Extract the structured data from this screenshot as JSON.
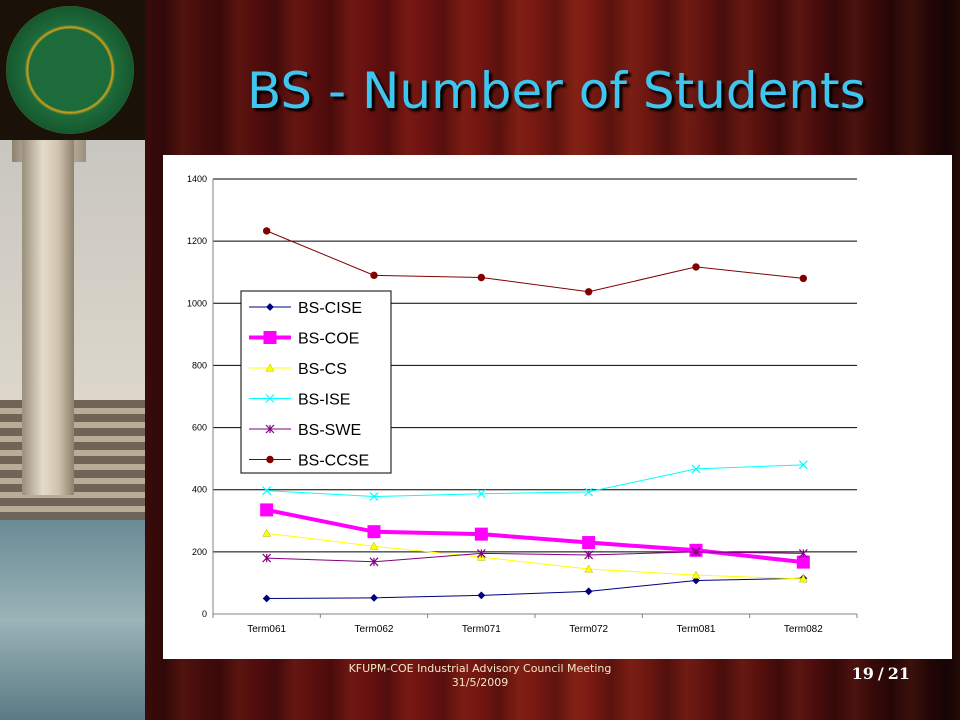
{
  "slide": {
    "title": "BS - Number of Students",
    "footer_line1": "KFUPM-COE Industrial Advisory Council Meeting",
    "footer_line2": "31/5/2009",
    "page_current": "19",
    "page_total": "21"
  },
  "colors": {
    "title": "#3fc6ef",
    "BS-CISE": "#000080",
    "BS-COE": "#ff00ff",
    "BS-CS": "#ffff00",
    "BS-ISE": "#00ffff",
    "BS-SWE": "#800080",
    "BS-CCSE": "#800000"
  },
  "chart_data": {
    "type": "line",
    "title": "",
    "xlabel": "",
    "ylabel": "",
    "categories": [
      "Term061",
      "Term062",
      "Term071",
      "Term072",
      "Term081",
      "Term082"
    ],
    "ylim": [
      0,
      1400
    ],
    "yticks": [
      "0",
      "200",
      "400",
      "600",
      "800",
      "1000",
      "1200",
      "1400"
    ],
    "grid": true,
    "legend_position": "left-middle",
    "series": [
      {
        "name": "BS-CISE",
        "marker": "diamond",
        "values": [
          50,
          52,
          60,
          73,
          108,
          115
        ]
      },
      {
        "name": "BS-COE",
        "marker": "square",
        "values": [
          335,
          265,
          257,
          230,
          205,
          167
        ]
      },
      {
        "name": "BS-CS",
        "marker": "triangle",
        "values": [
          260,
          218,
          183,
          145,
          125,
          113
        ]
      },
      {
        "name": "BS-ISE",
        "marker": "x",
        "values": [
          397,
          378,
          387,
          393,
          467,
          480
        ]
      },
      {
        "name": "BS-SWE",
        "marker": "star",
        "values": [
          180,
          168,
          195,
          190,
          200,
          195
        ]
      },
      {
        "name": "BS-CCSE",
        "marker": "circle",
        "values": [
          1233,
          1090,
          1083,
          1037,
          1117,
          1080
        ]
      }
    ]
  }
}
